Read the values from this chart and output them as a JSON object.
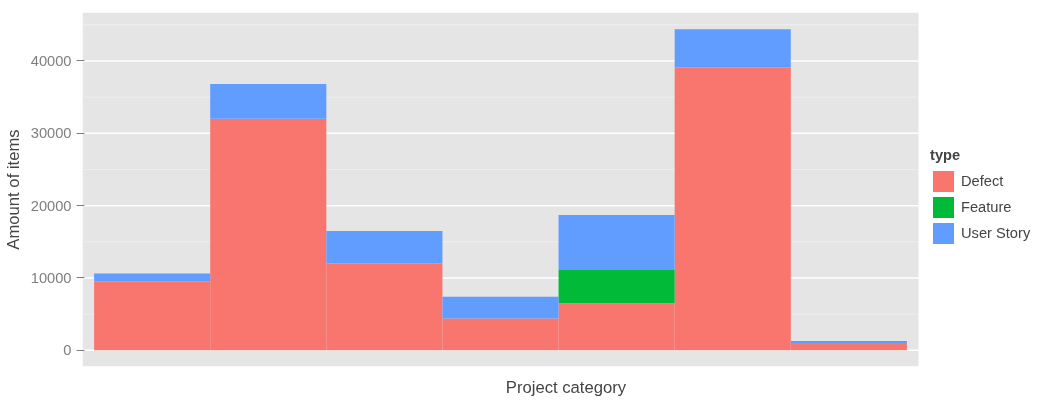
{
  "chart_data": {
    "type": "bar",
    "stacked": true,
    "xlabel": "Project category",
    "ylabel": "Amount of items",
    "legend_title": "type",
    "categories": [
      null,
      null,
      null,
      null,
      null,
      null,
      null
    ],
    "series": [
      {
        "name": "Defect",
        "color": "#f8766d",
        "values": [
          9500,
          32000,
          12000,
          4400,
          6500,
          39100,
          1000
        ]
      },
      {
        "name": "Feature",
        "color": "#00ba38",
        "values": [
          0,
          0,
          0,
          0,
          4600,
          0,
          0
        ]
      },
      {
        "name": "User Story",
        "color": "#619cff",
        "values": [
          1100,
          4800,
          4500,
          3000,
          7600,
          5300,
          300
        ]
      }
    ],
    "ylim": [
      -2240,
      46700
    ],
    "yticks": [
      0,
      10000,
      20000,
      30000,
      40000
    ],
    "grid": "y",
    "legend": "right"
  }
}
